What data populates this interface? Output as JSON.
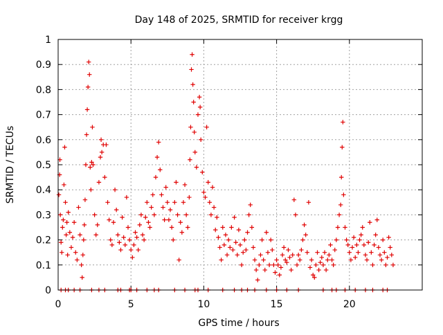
{
  "chart_data": {
    "type": "scatter",
    "title": "Day 148 of 2025, SRMTID for receiver krgg",
    "xlabel": "GPS time / hours",
    "ylabel": "SRMTID / TECUs",
    "xlim": [
      0,
      25
    ],
    "ylim": [
      0,
      1
    ],
    "xticks": [
      0,
      5,
      10,
      15,
      20
    ],
    "yticks": [
      0,
      0.1,
      0.2,
      0.3,
      0.4,
      0.5,
      0.6,
      0.7,
      0.8,
      0.9,
      1
    ],
    "xtick_labels": [
      "0",
      "5",
      "10",
      "15",
      "20"
    ],
    "ytick_labels": [
      "0",
      "0.1",
      "0.2",
      "0.3",
      "0.4",
      "0.5",
      "0.6",
      "0.7",
      "0.8",
      "0.9",
      "1"
    ],
    "grid": true,
    "marker": "+",
    "marker_color": "#e00000",
    "series": [
      {
        "name": "krgg",
        "points": [
          [
            0.05,
            0.38
          ],
          [
            0.1,
            0.46
          ],
          [
            0.12,
            0.52
          ],
          [
            0.15,
            0.3
          ],
          [
            0.2,
            0.19
          ],
          [
            0.25,
            0.15
          ],
          [
            0.3,
            0.25
          ],
          [
            0.35,
            0.28
          ],
          [
            0.4,
            0.42
          ],
          [
            0.45,
            0.57
          ],
          [
            0.5,
            0.35
          ],
          [
            0.55,
            0.22
          ],
          [
            0.6,
            0.27
          ],
          [
            0.65,
            0.14
          ],
          [
            0.7,
            0.31
          ],
          [
            0.8,
            0.23
          ],
          [
            0.9,
            0.17
          ],
          [
            1.0,
            0.21
          ],
          [
            1.1,
            0.27
          ],
          [
            1.2,
            0.15
          ],
          [
            1.3,
            0.12
          ],
          [
            1.4,
            0.33
          ],
          [
            1.5,
            0.22
          ],
          [
            1.6,
            0.1
          ],
          [
            1.65,
            0.05
          ],
          [
            1.7,
            0.14
          ],
          [
            1.75,
            0.2
          ],
          [
            1.8,
            0.26
          ],
          [
            1.85,
            0.36
          ],
          [
            1.9,
            0.5
          ],
          [
            1.95,
            0.62
          ],
          [
            2.0,
            0.72
          ],
          [
            2.05,
            0.81
          ],
          [
            2.1,
            0.91
          ],
          [
            2.15,
            0.86
          ],
          [
            2.2,
            0.49
          ],
          [
            2.25,
            0.4
          ],
          [
            2.3,
            0.51
          ],
          [
            2.35,
            0.65
          ],
          [
            2.4,
            0.5
          ],
          [
            2.5,
            0.3
          ],
          [
            2.6,
            0.22
          ],
          [
            2.7,
            0.26
          ],
          [
            2.8,
            0.43
          ],
          [
            2.9,
            0.53
          ],
          [
            2.95,
            0.6
          ],
          [
            3.0,
            0.55
          ],
          [
            3.1,
            0.58
          ],
          [
            3.2,
            0.45
          ],
          [
            3.3,
            0.58
          ],
          [
            3.4,
            0.35
          ],
          [
            3.5,
            0.28
          ],
          [
            3.6,
            0.2
          ],
          [
            3.7,
            0.18
          ],
          [
            3.8,
            0.27
          ],
          [
            3.9,
            0.4
          ],
          [
            4.0,
            0.32
          ],
          [
            4.1,
            0.22
          ],
          [
            4.2,
            0.19
          ],
          [
            4.3,
            0.16
          ],
          [
            4.4,
            0.29
          ],
          [
            4.5,
            0.21
          ],
          [
            4.6,
            0.18
          ],
          [
            4.7,
            0.37
          ],
          [
            4.8,
            0.25
          ],
          [
            4.9,
            0.2
          ],
          [
            5.0,
            0.16
          ],
          [
            5.1,
            0.13
          ],
          [
            5.2,
            0.18
          ],
          [
            5.3,
            0.23
          ],
          [
            5.4,
            0.21
          ],
          [
            5.5,
            0.16
          ],
          [
            5.6,
            0.26
          ],
          [
            5.7,
            0.3
          ],
          [
            5.8,
            0.22
          ],
          [
            5.9,
            0.2
          ],
          [
            6.0,
            0.29
          ],
          [
            6.1,
            0.35
          ],
          [
            6.2,
            0.27
          ],
          [
            6.3,
            0.25
          ],
          [
            6.4,
            0.33
          ],
          [
            6.5,
            0.38
          ],
          [
            6.6,
            0.3
          ],
          [
            6.7,
            0.45
          ],
          [
            6.8,
            0.53
          ],
          [
            6.9,
            0.59
          ],
          [
            7.0,
            0.48
          ],
          [
            7.1,
            0.38
          ],
          [
            7.2,
            0.33
          ],
          [
            7.3,
            0.28
          ],
          [
            7.4,
            0.41
          ],
          [
            7.5,
            0.35
          ],
          [
            7.6,
            0.28
          ],
          [
            7.7,
            0.32
          ],
          [
            7.8,
            0.25
          ],
          [
            7.9,
            0.2
          ],
          [
            8.0,
            0.35
          ],
          [
            8.1,
            0.43
          ],
          [
            8.2,
            0.3
          ],
          [
            8.3,
            0.12
          ],
          [
            8.4,
            0.27
          ],
          [
            8.5,
            0.23
          ],
          [
            8.6,
            0.35
          ],
          [
            8.7,
            0.42
          ],
          [
            8.8,
            0.3
          ],
          [
            8.9,
            0.25
          ],
          [
            9.0,
            0.37
          ],
          [
            9.05,
            0.52
          ],
          [
            9.1,
            0.65
          ],
          [
            9.15,
            0.88
          ],
          [
            9.2,
            0.94
          ],
          [
            9.25,
            0.82
          ],
          [
            9.3,
            0.75
          ],
          [
            9.35,
            0.63
          ],
          [
            9.4,
            0.55
          ],
          [
            9.5,
            0.49
          ],
          [
            9.6,
            0.7
          ],
          [
            9.7,
            0.77
          ],
          [
            9.75,
            0.73
          ],
          [
            9.8,
            0.6
          ],
          [
            9.9,
            0.47
          ],
          [
            10.0,
            0.39
          ],
          [
            10.1,
            0.37
          ],
          [
            10.2,
            0.65
          ],
          [
            10.3,
            0.43
          ],
          [
            10.4,
            0.35
          ],
          [
            10.5,
            0.3
          ],
          [
            10.6,
            0.41
          ],
          [
            10.7,
            0.33
          ],
          [
            10.8,
            0.24
          ],
          [
            10.9,
            0.29
          ],
          [
            11.0,
            0.21
          ],
          [
            11.1,
            0.17
          ],
          [
            11.2,
            0.12
          ],
          [
            11.3,
            0.25
          ],
          [
            11.4,
            0.18
          ],
          [
            11.5,
            0.22
          ],
          [
            11.6,
            0.14
          ],
          [
            11.7,
            0.2
          ],
          [
            11.8,
            0.17
          ],
          [
            11.9,
            0.25
          ],
          [
            12.0,
            0.16
          ],
          [
            12.1,
            0.29
          ],
          [
            12.2,
            0.19
          ],
          [
            12.3,
            0.14
          ],
          [
            12.4,
            0.24
          ],
          [
            12.5,
            0.18
          ],
          [
            12.6,
            0.1
          ],
          [
            12.7,
            0.15
          ],
          [
            12.8,
            0.2
          ],
          [
            12.9,
            0.16
          ],
          [
            13.0,
            0.23
          ],
          [
            13.1,
            0.3
          ],
          [
            13.2,
            0.34
          ],
          [
            13.3,
            0.25
          ],
          [
            13.4,
            0.17
          ],
          [
            13.5,
            0.12
          ],
          [
            13.6,
            0.08
          ],
          [
            13.7,
            0.04
          ],
          [
            13.8,
            0.1
          ],
          [
            13.9,
            0.14
          ],
          [
            14.0,
            0.2
          ],
          [
            14.1,
            0.12
          ],
          [
            14.2,
            0.08
          ],
          [
            14.3,
            0.23
          ],
          [
            14.4,
            0.15
          ],
          [
            14.5,
            0.1
          ],
          [
            14.6,
            0.2
          ],
          [
            14.7,
            0.16
          ],
          [
            14.8,
            0.1
          ],
          [
            14.9,
            0.07
          ],
          [
            15.0,
            0.12
          ],
          [
            15.1,
            0.1
          ],
          [
            15.2,
            0.06
          ],
          [
            15.3,
            0.09
          ],
          [
            15.4,
            0.14
          ],
          [
            15.5,
            0.17
          ],
          [
            15.6,
            0.12
          ],
          [
            15.7,
            0.11
          ],
          [
            15.8,
            0.16
          ],
          [
            15.9,
            0.13
          ],
          [
            16.0,
            0.08
          ],
          [
            16.1,
            0.14
          ],
          [
            16.2,
            0.36
          ],
          [
            16.3,
            0.3
          ],
          [
            16.4,
            0.1
          ],
          [
            16.5,
            0.14
          ],
          [
            16.6,
            0.12
          ],
          [
            16.7,
            0.16
          ],
          [
            16.8,
            0.2
          ],
          [
            16.9,
            0.26
          ],
          [
            17.0,
            0.22
          ],
          [
            17.1,
            0.15
          ],
          [
            17.2,
            0.35
          ],
          [
            17.3,
            0.09
          ],
          [
            17.4,
            0.12
          ],
          [
            17.5,
            0.06
          ],
          [
            17.6,
            0.05
          ],
          [
            17.7,
            0.1
          ],
          [
            17.8,
            0.15
          ],
          [
            17.9,
            0.08
          ],
          [
            18.0,
            0.11
          ],
          [
            18.1,
            0.13
          ],
          [
            18.2,
            0.1
          ],
          [
            18.3,
            0.15
          ],
          [
            18.4,
            0.08
          ],
          [
            18.5,
            0.12
          ],
          [
            18.6,
            0.14
          ],
          [
            18.7,
            0.18
          ],
          [
            18.8,
            0.12
          ],
          [
            18.9,
            0.1
          ],
          [
            19.0,
            0.16
          ],
          [
            19.1,
            0.2
          ],
          [
            19.2,
            0.25
          ],
          [
            19.3,
            0.3
          ],
          [
            19.4,
            0.34
          ],
          [
            19.45,
            0.45
          ],
          [
            19.5,
            0.57
          ],
          [
            19.55,
            0.67
          ],
          [
            19.6,
            0.38
          ],
          [
            19.7,
            0.25
          ],
          [
            19.8,
            0.2
          ],
          [
            19.9,
            0.18
          ],
          [
            20.0,
            0.15
          ],
          [
            20.1,
            0.12
          ],
          [
            20.2,
            0.17
          ],
          [
            20.3,
            0.21
          ],
          [
            20.4,
            0.13
          ],
          [
            20.5,
            0.18
          ],
          [
            20.6,
            0.15
          ],
          [
            20.7,
            0.2
          ],
          [
            20.8,
            0.22
          ],
          [
            20.9,
            0.25
          ],
          [
            21.0,
            0.18
          ],
          [
            21.1,
            0.14
          ],
          [
            21.2,
            0.12
          ],
          [
            21.3,
            0.19
          ],
          [
            21.4,
            0.27
          ],
          [
            21.5,
            0.15
          ],
          [
            21.6,
            0.1
          ],
          [
            21.7,
            0.18
          ],
          [
            21.8,
            0.22
          ],
          [
            21.9,
            0.28
          ],
          [
            22.0,
            0.17
          ],
          [
            22.1,
            0.14
          ],
          [
            22.2,
            0.12
          ],
          [
            22.3,
            0.2
          ],
          [
            22.4,
            0.15
          ],
          [
            22.5,
            0.1
          ],
          [
            22.6,
            0.13
          ],
          [
            22.7,
            0.21
          ],
          [
            22.8,
            0.17
          ],
          [
            22.9,
            0.14
          ],
          [
            23.0,
            0.1
          ]
        ]
      }
    ],
    "zero_values_x": [
      0.2,
      0.5,
      0.7,
      1.1,
      1.5,
      2.3,
      2.8,
      3.2,
      4.1,
      4.3,
      4.9,
      5.0,
      5.4,
      6.1,
      6.6,
      6.9,
      8.0,
      8.7,
      9.4,
      9.6,
      10.3,
      11.3,
      12.1,
      12.6,
      13.0,
      13.5,
      14.3,
      15.0,
      15.7,
      16.5,
      18.2,
      18.8,
      19.1,
      19.7,
      20.4,
      21.1,
      21.6,
      22.3,
      22.6
    ]
  }
}
